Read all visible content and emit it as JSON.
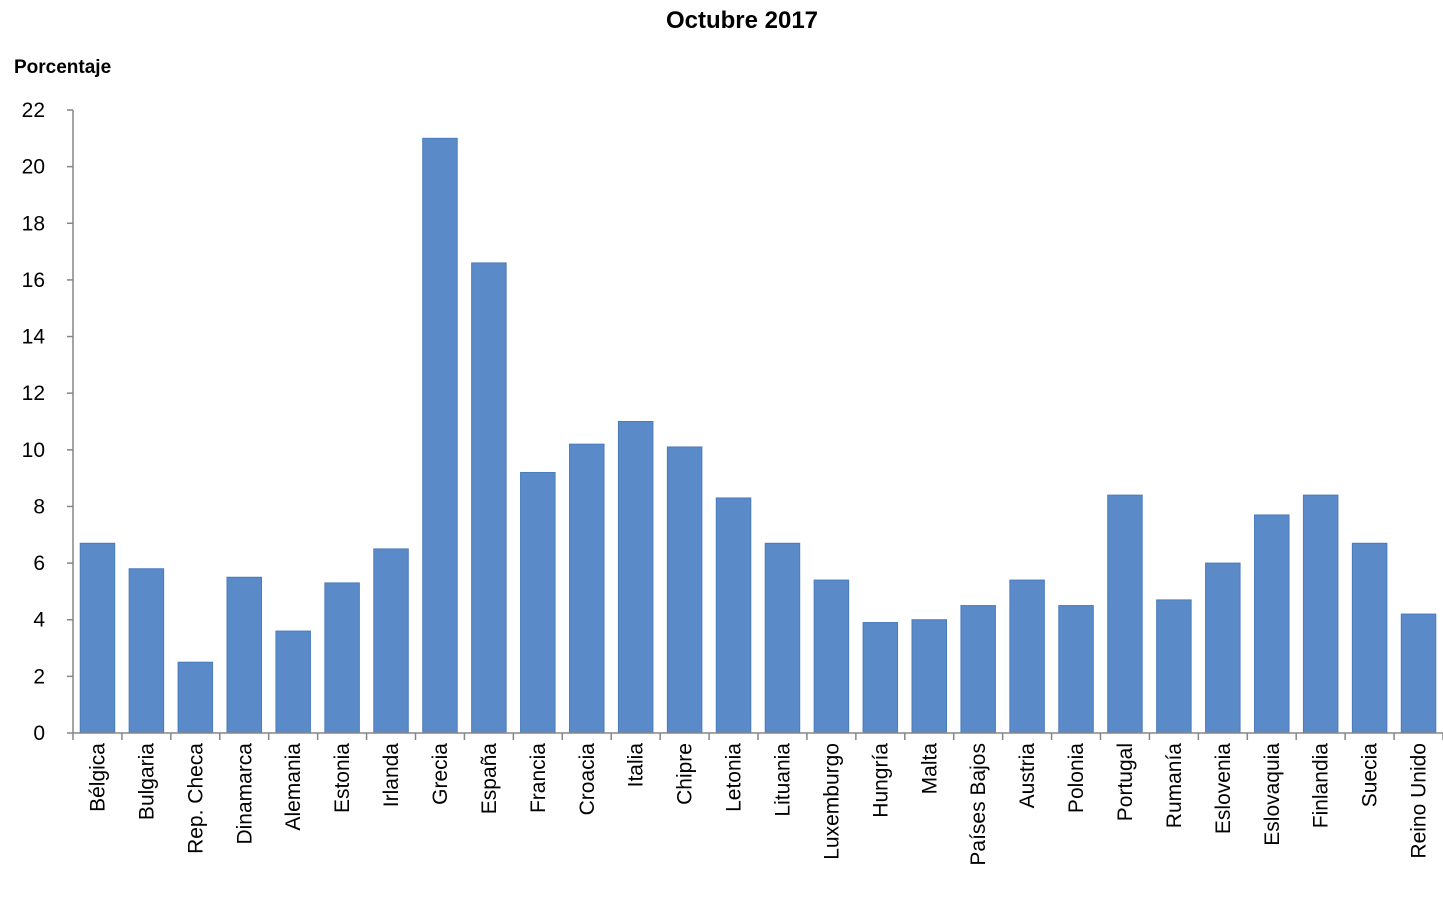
{
  "chart_data": {
    "type": "bar",
    "title": "Octubre 2017",
    "ylabel": "Porcentaje",
    "xlabel": "",
    "ylim": [
      0,
      22
    ],
    "yticks": [
      0,
      2,
      4,
      6,
      8,
      10,
      12,
      14,
      16,
      18,
      20,
      22
    ],
    "grid": false,
    "bar_color": "#5b8ac8",
    "categories": [
      "Bélgica",
      "Bulgaria",
      "Rep. Checa",
      "Dinamarca",
      "Alemania",
      "Estonia",
      "Irlanda",
      "Grecia",
      "España",
      "Francia",
      "Croacia",
      "Italia",
      "Chipre",
      "Letonia",
      "Lituania",
      "Luxemburgo",
      "Hungría",
      "Malta",
      "Países Bajos",
      "Austria",
      "Polonia",
      "Portugal",
      "Rumanía",
      "Eslovenia",
      "Eslovaquia",
      "Finlandia",
      "Suecia",
      "Reino Unido"
    ],
    "values": [
      6.7,
      5.8,
      2.5,
      5.5,
      3.6,
      5.3,
      6.5,
      21.0,
      16.6,
      9.2,
      10.2,
      11.0,
      10.1,
      8.3,
      6.7,
      5.4,
      3.9,
      4.0,
      4.5,
      5.4,
      4.5,
      8.4,
      4.7,
      6.0,
      7.7,
      8.4,
      6.7,
      4.2
    ]
  }
}
